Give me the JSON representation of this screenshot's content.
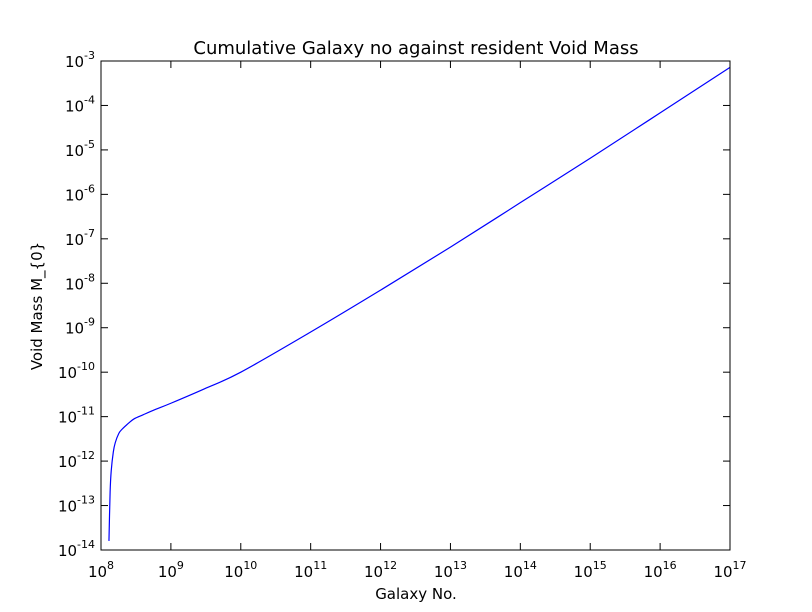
{
  "chart_data": {
    "type": "line",
    "title": "Cumulative Galaxy no against resident Void Mass",
    "xlabel": "Galaxy No.",
    "ylabel": "Void Mass M_{0}",
    "xscale": "log",
    "yscale": "log",
    "xlim": [
      100000000.0,
      1e+17
    ],
    "ylim": [
      1e-14,
      0.001
    ],
    "grid": false,
    "x_ticks": [
      {
        "base": "10",
        "exp": "8"
      },
      {
        "base": "10",
        "exp": "9"
      },
      {
        "base": "10",
        "exp": "10"
      },
      {
        "base": "10",
        "exp": "11"
      },
      {
        "base": "10",
        "exp": "12"
      },
      {
        "base": "10",
        "exp": "13"
      },
      {
        "base": "10",
        "exp": "14"
      },
      {
        "base": "10",
        "exp": "15"
      },
      {
        "base": "10",
        "exp": "16"
      },
      {
        "base": "10",
        "exp": "17"
      }
    ],
    "y_ticks": [
      {
        "base": "10",
        "exp": "-14"
      },
      {
        "base": "10",
        "exp": "-13"
      },
      {
        "base": "10",
        "exp": "-12"
      },
      {
        "base": "10",
        "exp": "-11"
      },
      {
        "base": "10",
        "exp": "-10"
      },
      {
        "base": "10",
        "exp": "-9"
      },
      {
        "base": "10",
        "exp": "-8"
      },
      {
        "base": "10",
        "exp": "-7"
      },
      {
        "base": "10",
        "exp": "-6"
      },
      {
        "base": "10",
        "exp": "-5"
      },
      {
        "base": "10",
        "exp": "-4"
      },
      {
        "base": "10",
        "exp": "-3"
      }
    ],
    "series": [
      {
        "color": "#0000ff",
        "x": [
          130000000.0,
          135000000.0,
          140000000.0,
          150000000.0,
          160000000.0,
          180000000.0,
          200000000.0,
          250000000.0,
          300000000.0,
          400000000.0,
          600000000.0,
          1000000000.0,
          3000000000.0,
          10000000000.0,
          100000000000.0,
          1000000000000.0,
          10000000000000.0,
          100000000000000.0,
          1000000000000000.0,
          1e+16,
          1e+17
        ],
        "y": [
          1.6e-14,
          2e-13,
          6e-13,
          1.6e-12,
          2.6e-12,
          4.2e-12,
          5.2e-12,
          7.2e-12,
          9e-12,
          1.1e-11,
          1.45e-11,
          2e-11,
          4.2e-11,
          1e-10,
          8e-10,
          7e-09,
          6.5e-08,
          6.5e-07,
          6.5e-06,
          6.8e-05,
          0.00072
        ]
      }
    ]
  }
}
